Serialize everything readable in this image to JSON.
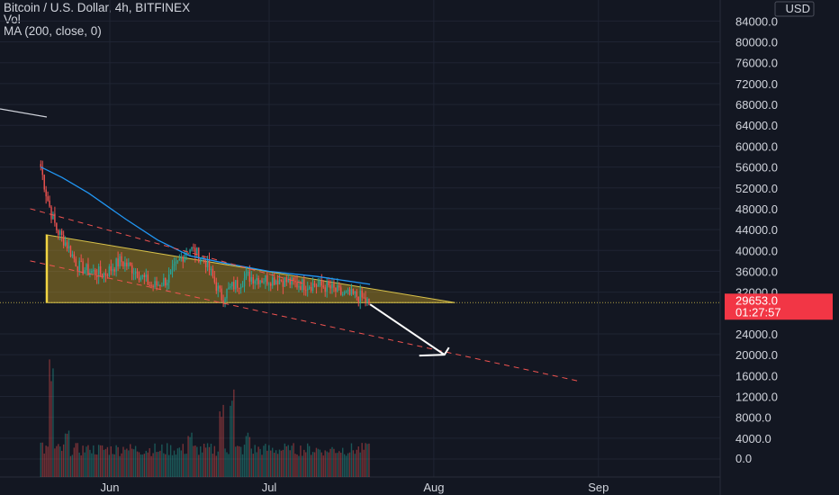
{
  "legend": {
    "symbol_line": "Bitcoin / U.S. Dollar, 4h, BITFINEX",
    "volume_label": "Vol",
    "ma_label": "MA (200, close, 0)"
  },
  "price_axis": {
    "currency_label": "USD",
    "ticks": [
      "84000.0",
      "80000.0",
      "76000.0",
      "72000.0",
      "68000.0",
      "64000.0",
      "60000.0",
      "56000.0",
      "52000.0",
      "48000.0",
      "44000.0",
      "40000.0",
      "36000.0",
      "32000.0",
      "24000.0",
      "20000.0",
      "16000.0",
      "12000.0",
      "8000.0",
      "4000.0",
      "0.0"
    ]
  },
  "last_price": {
    "value": "29653.0",
    "countdown": "01:27:57"
  },
  "date_axis": {
    "labels": [
      "Jun",
      "Jul",
      "Aug",
      "Sep"
    ]
  },
  "colors": {
    "background": "#131722",
    "up": "#26a69a",
    "down": "#ef5350",
    "ma": "#2196f3",
    "triangle_fill": "#c9a227",
    "triangle_edge": "#d8c24a",
    "trend_dashed": "#ef5350",
    "projection_arrow": "#ffffff",
    "price_badge": "#f23645"
  },
  "chart_data": {
    "type": "candlestick",
    "title": "Bitcoin / U.S. Dollar, 4h, BITFINEX",
    "xlabel": "",
    "ylabel": "USD",
    "ylim": [
      0,
      86000
    ],
    "grid": true,
    "price_series": [
      {
        "date": "2021-05-19",
        "close": 56000
      },
      {
        "date": "2021-05-20",
        "close": 51000
      },
      {
        "date": "2021-05-21",
        "close": 47000
      },
      {
        "date": "2021-05-22",
        "close": 44000
      },
      {
        "date": "2021-05-24",
        "close": 41000
      },
      {
        "date": "2021-05-26",
        "close": 37000
      },
      {
        "date": "2021-05-28",
        "close": 36000
      },
      {
        "date": "2021-05-31",
        "close": 35500
      },
      {
        "date": "2021-06-03",
        "close": 38000
      },
      {
        "date": "2021-06-06",
        "close": 36000
      },
      {
        "date": "2021-06-09",
        "close": 33000
      },
      {
        "date": "2021-06-12",
        "close": 34500
      },
      {
        "date": "2021-06-15",
        "close": 39500
      },
      {
        "date": "2021-06-16",
        "close": 40500
      },
      {
        "date": "2021-06-19",
        "close": 38000
      },
      {
        "date": "2021-06-22",
        "close": 31000
      },
      {
        "date": "2021-06-24",
        "close": 33000
      },
      {
        "date": "2021-06-27",
        "close": 35000
      },
      {
        "date": "2021-06-30",
        "close": 34500
      },
      {
        "date": "2021-07-03",
        "close": 34500
      },
      {
        "date": "2021-07-06",
        "close": 33500
      },
      {
        "date": "2021-07-09",
        "close": 33500
      },
      {
        "date": "2021-07-12",
        "close": 33000
      },
      {
        "date": "2021-07-15",
        "close": 31500
      },
      {
        "date": "2021-07-18",
        "close": 31200
      },
      {
        "date": "2021-07-20",
        "close": 29653
      }
    ],
    "moving_average": {
      "name": "MA (200, close, 0)",
      "points": [
        {
          "date": "2021-05-19",
          "value": 56000
        },
        {
          "date": "2021-05-23",
          "value": 54000
        },
        {
          "date": "2021-05-28",
          "value": 51000
        },
        {
          "date": "2021-06-04",
          "value": 46000
        },
        {
          "date": "2021-06-10",
          "value": 42000
        },
        {
          "date": "2021-06-16",
          "value": 39000
        },
        {
          "date": "2021-06-23",
          "value": 37500
        },
        {
          "date": "2021-07-01",
          "value": 36000
        },
        {
          "date": "2021-07-10",
          "value": 35000
        },
        {
          "date": "2021-07-20",
          "value": 33500
        }
      ]
    },
    "volume": {
      "name": "Vol",
      "points": [
        {
          "date": "2021-05-19",
          "value": 2000
        },
        {
          "date": "2021-05-21",
          "value": 11000
        },
        {
          "date": "2021-05-24",
          "value": 3000
        },
        {
          "date": "2021-05-28",
          "value": 1500
        },
        {
          "date": "2021-06-04",
          "value": 1500
        },
        {
          "date": "2021-06-10",
          "value": 1000
        },
        {
          "date": "2021-06-16",
          "value": 3000
        },
        {
          "date": "2021-06-22",
          "value": 6000
        },
        {
          "date": "2021-06-24",
          "value": 8500
        },
        {
          "date": "2021-06-27",
          "value": 3000
        },
        {
          "date": "2021-07-05",
          "value": 1500
        },
        {
          "date": "2021-07-12",
          "value": 1000
        },
        {
          "date": "2021-07-20",
          "value": 2500
        }
      ]
    },
    "drawings": {
      "descending_triangle": {
        "upper_start": {
          "date": "2021-05-21",
          "price": 43000
        },
        "apex": {
          "date": "2021-08-05",
          "price": 30000
        },
        "base_start": {
          "date": "2021-05-20",
          "price": 30000
        }
      },
      "upper_dashed_trend": [
        {
          "date": "2021-05-17",
          "price": 48000
        },
        {
          "date": "2021-07-08",
          "price": 33500
        }
      ],
      "lower_dashed_trend": [
        {
          "date": "2021-05-17",
          "price": 38000
        },
        {
          "date": "2021-08-28",
          "price": 15000
        }
      ],
      "projection_arrow": [
        {
          "date": "2021-07-20",
          "price": 29653
        },
        {
          "date": "2021-08-03",
          "price": 20000
        }
      ]
    }
  }
}
